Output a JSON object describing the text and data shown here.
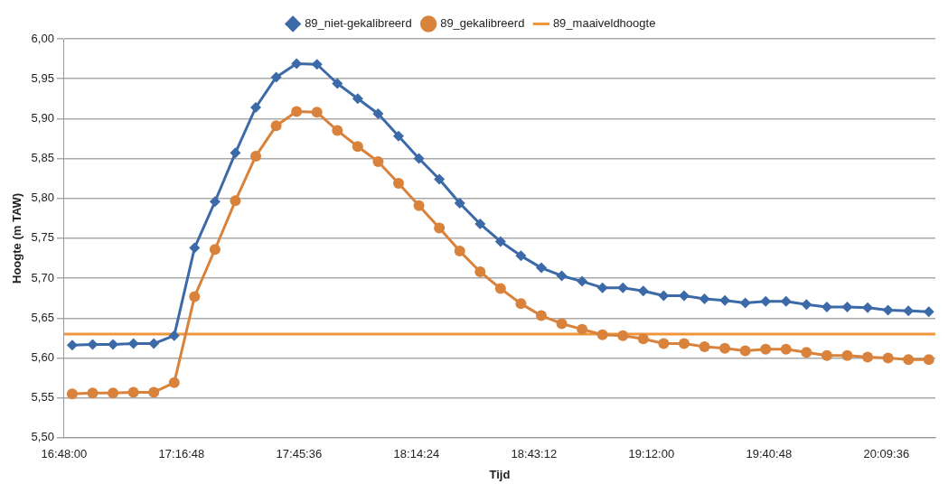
{
  "chart_data": {
    "type": "line",
    "xlabel": "Tijd",
    "ylabel": "Hoogte (m TAW)",
    "x": [
      16.8333,
      16.9167,
      17,
      17.0833,
      17.1667,
      17.25,
      17.3333,
      17.4167,
      17.5,
      17.5833,
      17.6667,
      17.75,
      17.8333,
      17.9167,
      18,
      18.0833,
      18.1667,
      18.25,
      18.3333,
      18.4167,
      18.5,
      18.5833,
      18.6667,
      18.75,
      18.8333,
      18.9167,
      19,
      19.0833,
      19.1667,
      19.25,
      19.3333,
      19.4167,
      19.5,
      19.5833,
      19.6667,
      19.75,
      19.8333,
      19.9167,
      20,
      20.0833,
      20.1667,
      20.25,
      20.3333
    ],
    "series": [
      {
        "name": "89_niet-gekalibreerd",
        "color": "#3c6aa8",
        "marker": "diamond",
        "values": [
          5.616,
          5.617,
          5.617,
          5.618,
          5.618,
          5.628,
          5.738,
          5.796,
          5.857,
          5.914,
          5.952,
          5.969,
          5.968,
          5.944,
          5.925,
          5.906,
          5.878,
          5.85,
          5.824,
          5.794,
          5.768,
          5.746,
          5.728,
          5.713,
          5.703,
          5.696,
          5.688,
          5.688,
          5.684,
          5.678,
          5.678,
          5.674,
          5.672,
          5.669,
          5.671,
          5.671,
          5.667,
          5.664,
          5.664,
          5.663,
          5.66,
          5.659,
          5.658
        ]
      },
      {
        "name": "89_gekalibreerd",
        "color": "#d9823b",
        "marker": "circle",
        "values": [
          5.555,
          5.556,
          5.556,
          5.557,
          5.557,
          5.569,
          5.677,
          5.736,
          5.797,
          5.853,
          5.891,
          5.909,
          5.908,
          5.885,
          5.865,
          5.846,
          5.819,
          5.791,
          5.763,
          5.734,
          5.708,
          5.687,
          5.668,
          5.653,
          5.643,
          5.636,
          5.629,
          5.628,
          5.624,
          5.618,
          5.618,
          5.614,
          5.612,
          5.609,
          5.611,
          5.611,
          5.607,
          5.603,
          5.603,
          5.601,
          5.6,
          5.598,
          5.598
        ]
      }
    ],
    "ref_lines": [
      {
        "axis": "y",
        "value": 5.63,
        "label": "89_maaiveldhoogte",
        "color": "#f0963c"
      }
    ],
    "xlim": [
      16.8,
      20.36
    ],
    "xticks": [
      {
        "value": 16.8,
        "label": "16:48:00"
      },
      {
        "value": 17.28,
        "label": "17:16:48"
      },
      {
        "value": 17.76,
        "label": "17:45:36"
      },
      {
        "value": 18.24,
        "label": "18:14:24"
      },
      {
        "value": 18.72,
        "label": "18:43:12"
      },
      {
        "value": 19.2,
        "label": "19:12:00"
      },
      {
        "value": 19.68,
        "label": "19:40:48"
      },
      {
        "value": 20.16,
        "label": "20:09:36"
      }
    ],
    "ylim": [
      5.5,
      6.0
    ],
    "yticks": [
      {
        "value": 5.5,
        "label": "5,50"
      },
      {
        "value": 5.55,
        "label": "5,55"
      },
      {
        "value": 5.6,
        "label": "5,60"
      },
      {
        "value": 5.65,
        "label": "5,65"
      },
      {
        "value": 5.7,
        "label": "5,70"
      },
      {
        "value": 5.75,
        "label": "5,75"
      },
      {
        "value": 5.8,
        "label": "5,80"
      },
      {
        "value": 5.85,
        "label": "5,85"
      },
      {
        "value": 5.9,
        "label": "5,90"
      },
      {
        "value": 5.95,
        "label": "5,95"
      },
      {
        "value": 6.0,
        "label": "6,00"
      }
    ],
    "grid": "y",
    "legend": "top"
  }
}
